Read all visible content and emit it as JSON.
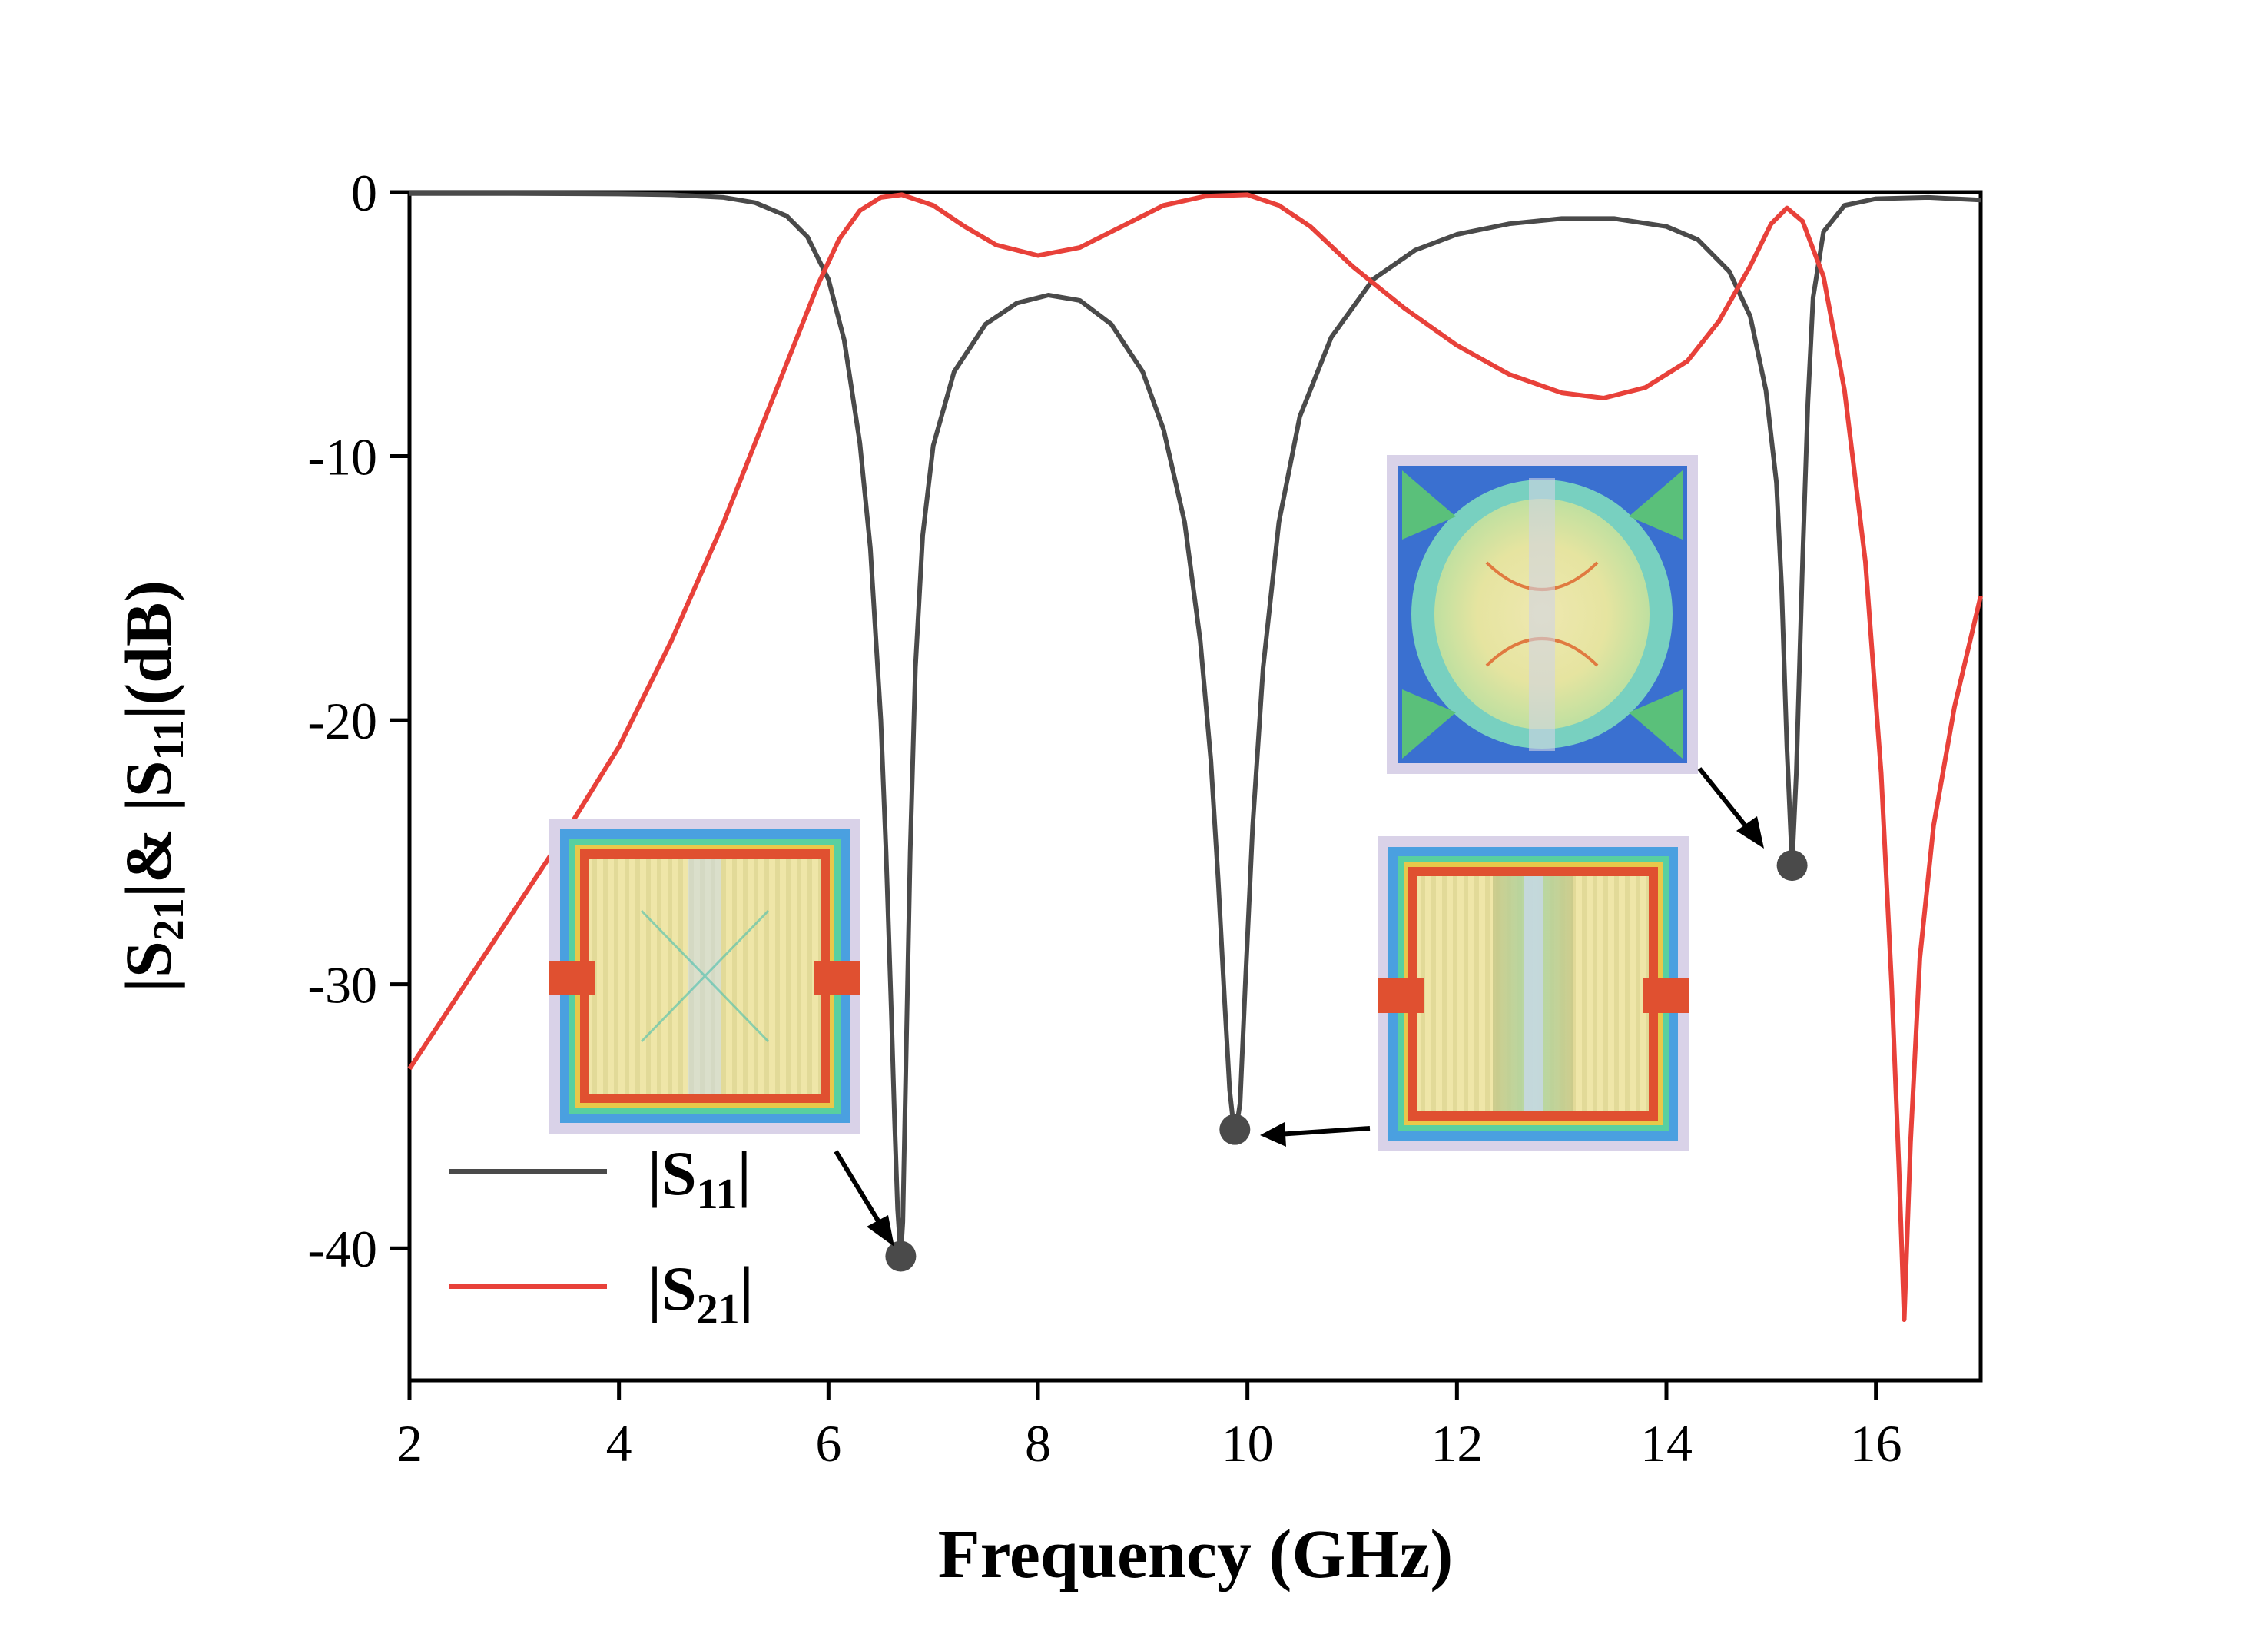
{
  "chart_data": {
    "type": "line",
    "title": "",
    "xlabel": "Frequency (GHz)",
    "ylabel": {
      "parts": [
        {
          "text": "|S",
          "sub": false
        },
        {
          "text": "21",
          "sub": true
        },
        {
          "text": "|& |S",
          "sub": false
        },
        {
          "text": "11",
          "sub": true
        },
        {
          "text": "|(dB)",
          "sub": false
        }
      ]
    },
    "xlim": [
      2,
      17
    ],
    "ylim": [
      -45,
      0
    ],
    "xticks": [
      2,
      4,
      6,
      8,
      10,
      12,
      14,
      16
    ],
    "xtick_labels": [
      "2",
      "4",
      "6",
      "8",
      "10",
      "12",
      "14",
      "16"
    ],
    "yticks": [
      0,
      -10,
      -20,
      -30,
      -40
    ],
    "ytick_labels": [
      "0",
      "-10",
      "-20",
      "-30",
      "-40"
    ],
    "grid": false,
    "legend_position": "bottom-left",
    "series": [
      {
        "name": "|S11|",
        "legend": {
          "main": "|S",
          "sub": "11",
          "end": "|"
        },
        "color": "#4a4a4a",
        "points": [
          [
            2.0,
            -0.05
          ],
          [
            3.0,
            -0.05
          ],
          [
            4.0,
            -0.07
          ],
          [
            4.5,
            -0.1
          ],
          [
            5.0,
            -0.2
          ],
          [
            5.3,
            -0.4
          ],
          [
            5.6,
            -0.9
          ],
          [
            5.8,
            -1.7
          ],
          [
            6.0,
            -3.3
          ],
          [
            6.15,
            -5.6
          ],
          [
            6.3,
            -9.5
          ],
          [
            6.4,
            -13.5
          ],
          [
            6.5,
            -20
          ],
          [
            6.55,
            -25
          ],
          [
            6.6,
            -31
          ],
          [
            6.63,
            -35
          ],
          [
            6.66,
            -38.5
          ],
          [
            6.69,
            -40.3
          ],
          [
            6.71,
            -39.0
          ],
          [
            6.74,
            -33
          ],
          [
            6.78,
            -25
          ],
          [
            6.83,
            -18
          ],
          [
            6.9,
            -13
          ],
          [
            7.0,
            -9.6
          ],
          [
            7.2,
            -6.8
          ],
          [
            7.5,
            -5.0
          ],
          [
            7.8,
            -4.2
          ],
          [
            8.1,
            -3.9
          ],
          [
            8.4,
            -4.1
          ],
          [
            8.7,
            -5.0
          ],
          [
            9.0,
            -6.8
          ],
          [
            9.2,
            -9.0
          ],
          [
            9.4,
            -12.5
          ],
          [
            9.55,
            -17
          ],
          [
            9.65,
            -21.5
          ],
          [
            9.72,
            -26
          ],
          [
            9.78,
            -30.5
          ],
          [
            9.83,
            -34
          ],
          [
            9.88,
            -35.8
          ],
          [
            9.93,
            -34.5
          ],
          [
            9.98,
            -30
          ],
          [
            10.05,
            -24
          ],
          [
            10.15,
            -18
          ],
          [
            10.3,
            -12.5
          ],
          [
            10.5,
            -8.5
          ],
          [
            10.8,
            -5.5
          ],
          [
            11.2,
            -3.3
          ],
          [
            11.6,
            -2.2
          ],
          [
            12.0,
            -1.6
          ],
          [
            12.5,
            -1.2
          ],
          [
            13.0,
            -1.0
          ],
          [
            13.5,
            -1.0
          ],
          [
            14.0,
            -1.3
          ],
          [
            14.3,
            -1.8
          ],
          [
            14.6,
            -3.0
          ],
          [
            14.8,
            -4.7
          ],
          [
            14.95,
            -7.5
          ],
          [
            15.05,
            -11
          ],
          [
            15.1,
            -15
          ],
          [
            15.15,
            -21
          ],
          [
            15.2,
            -25.5
          ],
          [
            15.24,
            -22
          ],
          [
            15.3,
            -14
          ],
          [
            15.35,
            -8
          ],
          [
            15.4,
            -4
          ],
          [
            15.5,
            -1.5
          ],
          [
            15.7,
            -0.5
          ],
          [
            16.0,
            -0.25
          ],
          [
            16.5,
            -0.2
          ],
          [
            17.0,
            -0.3
          ]
        ]
      },
      {
        "name": "|S21|",
        "legend": {
          "main": "|S",
          "sub": "21",
          "end": "|"
        },
        "color": "#e8413a",
        "points": [
          [
            2.0,
            -33.2
          ],
          [
            2.5,
            -30.2
          ],
          [
            3.0,
            -27.2
          ],
          [
            3.5,
            -24.2
          ],
          [
            4.0,
            -21.0
          ],
          [
            4.5,
            -17.0
          ],
          [
            5.0,
            -12.5
          ],
          [
            5.3,
            -9.5
          ],
          [
            5.6,
            -6.5
          ],
          [
            5.9,
            -3.5
          ],
          [
            6.1,
            -1.8
          ],
          [
            6.3,
            -0.7
          ],
          [
            6.5,
            -0.2
          ],
          [
            6.7,
            -0.1
          ],
          [
            7.0,
            -0.5
          ],
          [
            7.3,
            -1.3
          ],
          [
            7.6,
            -2.0
          ],
          [
            8.0,
            -2.4
          ],
          [
            8.4,
            -2.1
          ],
          [
            8.8,
            -1.3
          ],
          [
            9.2,
            -0.5
          ],
          [
            9.6,
            -0.15
          ],
          [
            10.0,
            -0.1
          ],
          [
            10.3,
            -0.5
          ],
          [
            10.6,
            -1.3
          ],
          [
            11.0,
            -2.8
          ],
          [
            11.5,
            -4.4
          ],
          [
            12.0,
            -5.8
          ],
          [
            12.5,
            -6.9
          ],
          [
            13.0,
            -7.6
          ],
          [
            13.4,
            -7.8
          ],
          [
            13.8,
            -7.4
          ],
          [
            14.2,
            -6.4
          ],
          [
            14.5,
            -4.9
          ],
          [
            14.8,
            -2.8
          ],
          [
            15.0,
            -1.2
          ],
          [
            15.15,
            -0.6
          ],
          [
            15.3,
            -1.1
          ],
          [
            15.5,
            -3.2
          ],
          [
            15.7,
            -7.5
          ],
          [
            15.9,
            -14
          ],
          [
            16.05,
            -22
          ],
          [
            16.15,
            -30
          ],
          [
            16.22,
            -37
          ],
          [
            16.27,
            -42.7
          ],
          [
            16.33,
            -36
          ],
          [
            16.42,
            -29
          ],
          [
            16.55,
            -24
          ],
          [
            16.75,
            -19.5
          ],
          [
            17.0,
            -15.3
          ]
        ]
      }
    ],
    "markers": [
      {
        "x": 6.69,
        "y": -40.3,
        "color": "#4a4a4a"
      },
      {
        "x": 9.88,
        "y": -35.5,
        "color": "#4a4a4a"
      },
      {
        "x": 15.2,
        "y": -25.5,
        "color": "#4a4a4a"
      }
    ]
  },
  "insets": {
    "inset-6ghz": {
      "kind": "field-distribution",
      "resonance_ghz": 6.7
    },
    "inset-10ghz": {
      "kind": "field-distribution",
      "resonance_ghz": 9.9
    },
    "inset-15ghz": {
      "kind": "field-distribution",
      "resonance_ghz": 15.2
    }
  }
}
